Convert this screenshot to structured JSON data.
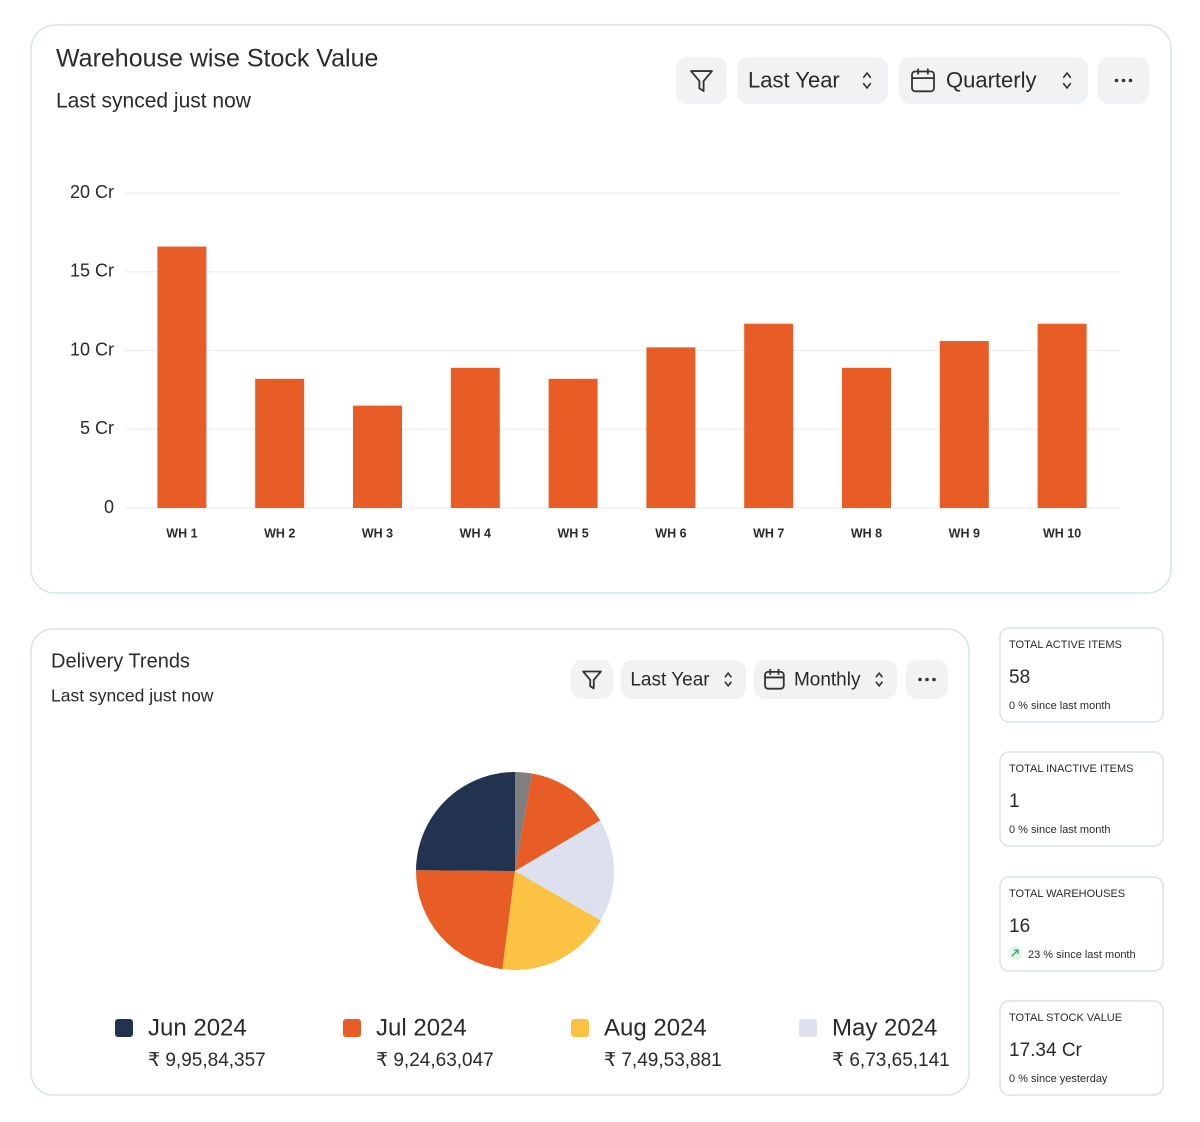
{
  "chart_data": [
    {
      "type": "bar",
      "title": "Warehouse wise Stock Value",
      "subtitle": "Last synced just now",
      "categories": [
        "WH 1",
        "WH 2",
        "WH 3",
        "WH 4",
        "WH 5",
        "WH 6",
        "WH 7",
        "WH 8",
        "WH 9",
        "WH 10"
      ],
      "values": [
        16.6,
        8.2,
        6.5,
        8.9,
        8.2,
        10.2,
        11.7,
        8.9,
        10.6,
        11.7
      ],
      "color": "#e85d25",
      "ylim": [
        0,
        20
      ],
      "yticks": [
        0,
        {
          "value": 5,
          "label": "5 Cr"
        },
        {
          "value": 10,
          "label": "10 Cr"
        },
        {
          "value": 15,
          "label": "15 Cr"
        },
        {
          "value": 20,
          "label": "20 Cr"
        }
      ],
      "grid": true
    },
    {
      "type": "pie",
      "title": "Delivery Trends",
      "subtitle": "Last synced just now",
      "categories": [
        "Jun 2024",
        "Jul 2024",
        "Aug 2024",
        "May 2024",
        null,
        null
      ],
      "values": [
        99584357,
        92463047,
        74953881,
        67365141,
        55000000,
        11000000
      ],
      "value_labels": [
        "₹ 9,95,84,357",
        "₹ 9,24,63,047",
        "₹ 7,49,53,881",
        "₹ 6,73,65,141",
        null,
        null
      ],
      "colors": [
        "#22334f",
        "#e85d25",
        "#fbc244",
        "#dde1ef",
        "#e85d25",
        "#7f7f7f"
      ],
      "legend": "bottom"
    }
  ],
  "controls": [
    {
      "period": "Last Year",
      "interval": "Quarterly"
    },
    {
      "period": "Last Year",
      "interval": "Monthly"
    }
  ],
  "cards": [
    {
      "title": "TOTAL ACTIVE ITEMS",
      "value": 58,
      "change": "0 % since last month",
      "color": "#222222",
      "change_color": "#666666"
    },
    {
      "title": "TOTAL INACTIVE ITEMS",
      "value": 1,
      "change": "0 % since last month",
      "color": "#e8622a",
      "change_color": "#666666"
    },
    {
      "title": "TOTAL WAREHOUSES",
      "value": 16,
      "change": "23 % since last month",
      "color": "#222222",
      "change_color": "#2ea85a"
    },
    {
      "title": "TOTAL STOCK VALUE",
      "value": "17.34 Cr",
      "change": "0 % since yesterday",
      "color": "#e8622a",
      "change_color": "#666666"
    }
  ]
}
